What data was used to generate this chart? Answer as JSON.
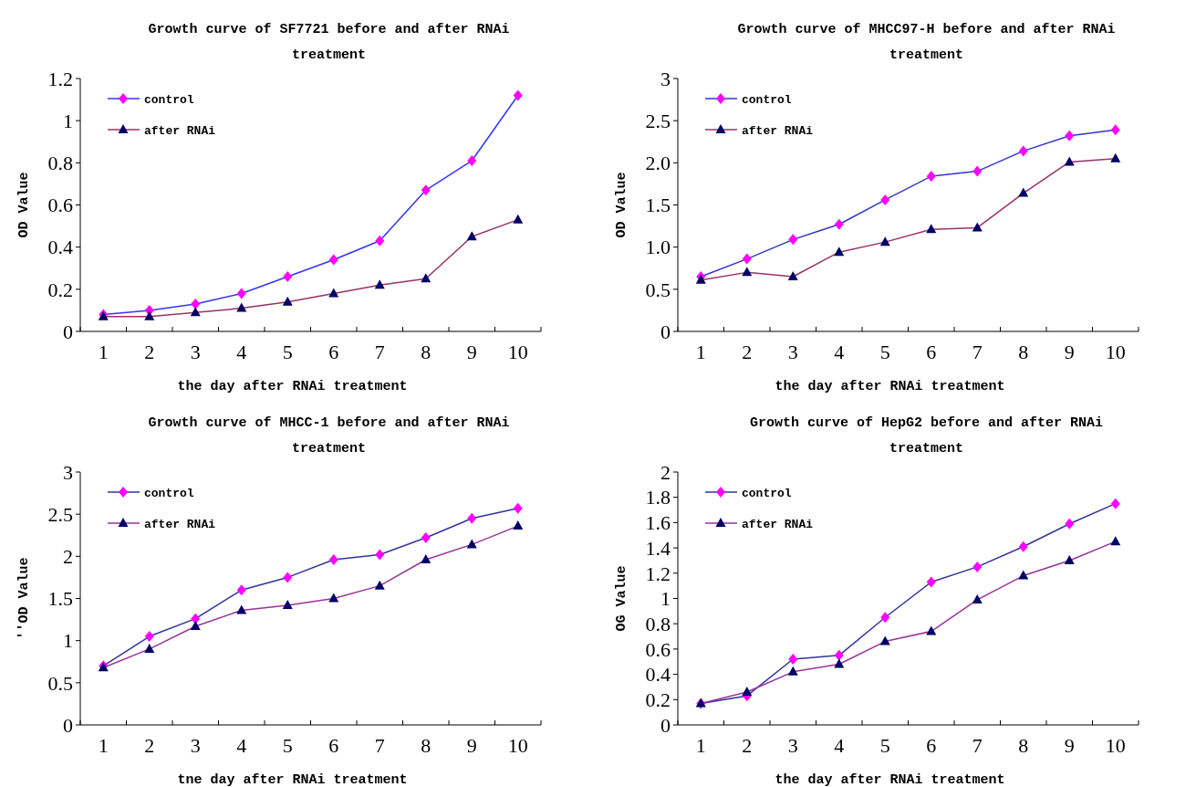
{
  "chart_data": [
    {
      "type": "line",
      "title": "Growth curve of SF7721 before and after RNAi treatment",
      "xlabel": "the day after RNAi treatment",
      "ylabel": "OD Value",
      "categories": [
        "1",
        "2",
        "3",
        "4",
        "5",
        "6",
        "7",
        "8",
        "9",
        "10"
      ],
      "ylim": [
        0,
        1.2
      ],
      "yticks": [
        0,
        0.2,
        0.4,
        0.6,
        0.8,
        1,
        1.2
      ],
      "grid": false,
      "legend": "top left",
      "series": [
        {
          "name": "control",
          "color": "#3333ff",
          "marker": "diamond",
          "values": [
            0.08,
            0.1,
            0.13,
            0.18,
            0.26,
            0.34,
            0.43,
            0.67,
            0.81,
            1.12
          ]
        },
        {
          "name": "after RNAi",
          "color": "#993366",
          "marker": "triangle",
          "values": [
            0.07,
            0.07,
            0.09,
            0.11,
            0.14,
            0.18,
            0.22,
            0.25,
            0.45,
            0.53
          ]
        }
      ]
    },
    {
      "type": "line",
      "title": "Growth curve of MHCC97-H before and after RNAi treatment",
      "xlabel": "the day after RNAi treatment",
      "ylabel": "OD Value",
      "categories": [
        "1",
        "2",
        "3",
        "4",
        "5",
        "6",
        "7",
        "8",
        "9",
        "10"
      ],
      "ylim": [
        0,
        3
      ],
      "yticks": [
        0,
        0.5,
        {
          "value": 1,
          "label": "1.0"
        },
        1.5,
        {
          "value": 2,
          "label": "2.0"
        },
        2.5,
        3
      ],
      "grid": false,
      "legend": "top left",
      "series": [
        {
          "name": "control",
          "color": "#3333cc",
          "marker": "diamond",
          "values": [
            0.65,
            0.86,
            1.09,
            1.27,
            1.56,
            1.84,
            1.9,
            2.14,
            2.32,
            2.39
          ]
        },
        {
          "name": "after RNAi",
          "color": "#993366",
          "marker": "triangle",
          "values": [
            0.61,
            0.7,
            0.65,
            0.94,
            1.06,
            1.21,
            1.23,
            1.64,
            2.01,
            2.05
          ]
        }
      ]
    },
    {
      "type": "line",
      "title": "Growth curve of MHCC-1 before and after RNAi treatment",
      "xlabel": "tne day after RNAi treatment",
      "ylabel": "''OD Value",
      "categories": [
        "1",
        "2",
        "3",
        "4",
        "5",
        "6",
        "7",
        "8",
        "9",
        "10"
      ],
      "ylim": [
        0,
        3
      ],
      "yticks": [
        0,
        0.5,
        1,
        1.5,
        2,
        2.5,
        3
      ],
      "grid": false,
      "legend": "top left",
      "series": [
        {
          "name": "control",
          "color": "#333399",
          "marker": "diamond",
          "values": [
            0.7,
            1.05,
            1.26,
            1.6,
            1.75,
            1.96,
            2.02,
            2.22,
            2.45,
            2.57
          ]
        },
        {
          "name": "after RNAi",
          "color": "#993399",
          "marker": "triangle",
          "values": [
            0.68,
            0.9,
            1.17,
            1.36,
            1.42,
            1.5,
            1.65,
            1.96,
            2.14,
            2.36
          ]
        }
      ]
    },
    {
      "type": "line",
      "title": "Growth curve of HepG2 before and after RNAi treatment",
      "xlabel": "the day after RNAi treatment",
      "ylabel": "OG Value",
      "categories": [
        "1",
        "2",
        "3",
        "4",
        "5",
        "6",
        "7",
        "8",
        "9",
        "10"
      ],
      "ylim": [
        0,
        2
      ],
      "yticks": [
        0,
        0.2,
        0.4,
        0.6,
        0.8,
        1,
        1.2,
        1.4,
        1.6,
        1.8,
        2
      ],
      "grid": false,
      "legend": "top left",
      "series": [
        {
          "name": "control",
          "color": "#333399",
          "marker": "diamond",
          "values": [
            0.17,
            0.23,
            0.52,
            0.55,
            0.85,
            1.13,
            1.25,
            1.41,
            1.59,
            1.75
          ]
        },
        {
          "name": "after RNAi",
          "color": "#993399",
          "marker": "triangle",
          "values": [
            0.17,
            0.26,
            0.42,
            0.48,
            0.66,
            0.74,
            0.99,
            1.18,
            1.3,
            1.45
          ]
        }
      ]
    }
  ]
}
